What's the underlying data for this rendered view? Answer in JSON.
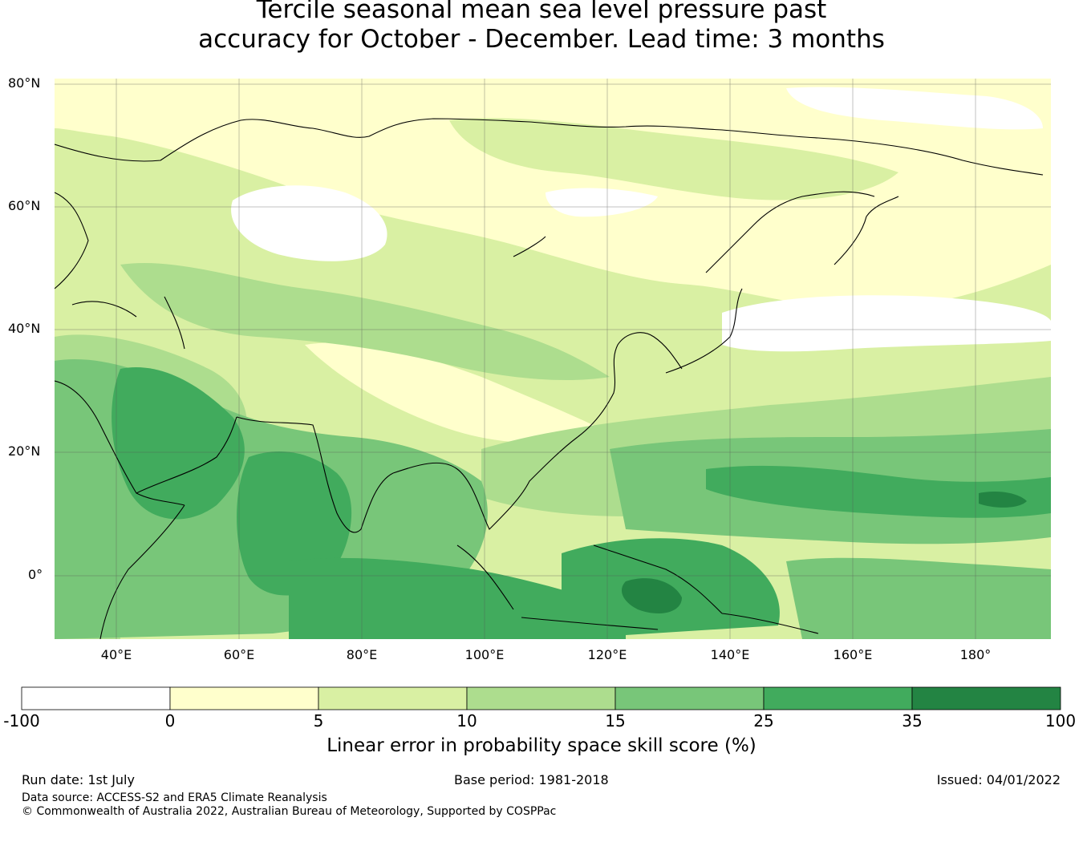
{
  "title": {
    "line1": "Tercile seasonal mean sea level pressure past",
    "line2": "accuracy for October - December. Lead time: 3 months"
  },
  "map": {
    "lat_labels": [
      "80°N",
      "60°N",
      "40°N",
      "20°N",
      "0°"
    ],
    "lon_labels": [
      "40°E",
      "60°E",
      "80°E",
      "100°E",
      "120°E",
      "140°E",
      "160°E",
      "180°"
    ],
    "colors": {
      "neg": "#ffffff",
      "c0_5": "#ffffcc",
      "c5_10": "#d9f0a3",
      "c10_15": "#addd8e",
      "c15_25": "#78c679",
      "c25_35": "#41ab5d",
      "c35_100": "#238443",
      "coast": "#000000",
      "grid": "#555555"
    }
  },
  "colorbar": {
    "ticks": [
      "-100",
      "0",
      "5",
      "10",
      "15",
      "25",
      "35",
      "100"
    ],
    "colors": [
      "#ffffff",
      "#ffffcc",
      "#d9f0a3",
      "#addd8e",
      "#78c679",
      "#41ab5d",
      "#238443"
    ],
    "label": "Linear error in probability space skill score (%)"
  },
  "footer": {
    "run_date": "Run date: 1st July",
    "base_period": "Base period: 1981-2018",
    "issued": "Issued: 04/01/2022",
    "data_source": "Data source: ACCESS-S2 and ERA5 Climate Reanalysis",
    "copyright": "© Commonwealth of Australia 2022, Australian Bureau of Meteorology, Supported by COSPPac"
  }
}
